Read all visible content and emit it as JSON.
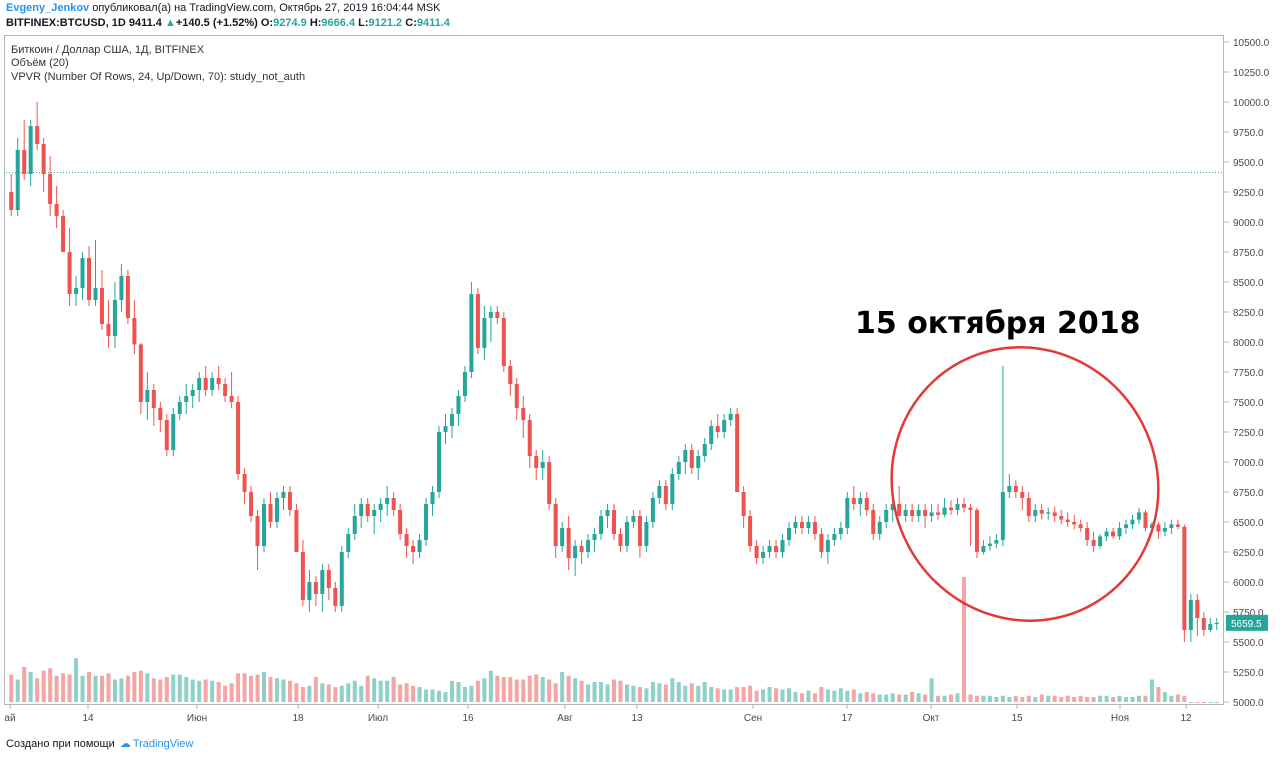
{
  "header": {
    "author": "Evgeny_Jenkov",
    "published_text": "опубликовал(а) на TradingView.com, Октябрь 27, 2019 16:04:44 MSK",
    "symbol": "BITFINEX:BTCUSD, 1D",
    "last": "9411.4",
    "change": "+140.5 (+1.52%)",
    "open_label": "O:",
    "open": "9274.9",
    "high_label": "H:",
    "high": "9666.4",
    "low_label": "L:",
    "low": "9121.2",
    "close_label": "C:",
    "close": "9411.4"
  },
  "legend": {
    "title": "Биткоин / Доллар США, 1Д, BITFINEX",
    "volume": "Объём (20)",
    "vpvr": "VPVR (Number Of Rows, 24, Up/Down, 70): study_not_auth"
  },
  "annotation": "15 октября 2018",
  "footer": {
    "created": "Создано при помощи",
    "brand": "TradingView"
  },
  "colors": {
    "up": "#26a69a",
    "down": "#ef5350",
    "vol_up": "#8fd1c8",
    "vol_down": "#f5a5a3",
    "circle": "#e53935",
    "price_line": "#26a69a"
  },
  "chart_data": {
    "type": "candlestick",
    "y_axis": {
      "min": 5000,
      "max": 10500,
      "step": 250,
      "tick_labels": [
        "10500.0",
        "10250.0",
        "10000.0",
        "9750.0",
        "9500.0",
        "9250.0",
        "9000.0",
        "8750.0",
        "8500.0",
        "8250.0",
        "8000.0",
        "7750.0",
        "7500.0",
        "7250.0",
        "7000.0",
        "6750.0",
        "6500.0",
        "6250.0",
        "6000.0",
        "5750.0",
        "5500.0",
        "5250.0",
        "5000.0"
      ]
    },
    "x_axis": {
      "labels": [
        "ай",
        "14",
        "Июн",
        "18",
        "Июл",
        "16",
        "Авг",
        "13",
        "Сен",
        "17",
        "Окт",
        "15",
        "Ноя",
        "12"
      ]
    },
    "current_price_label": "5659.5",
    "current_price": 5659.5,
    "price_line": 9411.4,
    "candles": [
      [
        9250,
        9400,
        9050,
        9100
      ],
      [
        9100,
        9700,
        9050,
        9600
      ],
      [
        9600,
        9850,
        9350,
        9400
      ],
      [
        9400,
        9850,
        9300,
        9800
      ],
      [
        9800,
        10000,
        9600,
        9650
      ],
      [
        9650,
        9700,
        9250,
        9400
      ],
      [
        9400,
        9550,
        9050,
        9150
      ],
      [
        9150,
        9300,
        8950,
        9050
      ],
      [
        9050,
        9100,
        8750,
        8750
      ],
      [
        8750,
        8950,
        8300,
        8400
      ],
      [
        8400,
        8550,
        8300,
        8450
      ],
      [
        8450,
        8750,
        8350,
        8700
      ],
      [
        8700,
        8800,
        8300,
        8350
      ],
      [
        8350,
        8850,
        8300,
        8450
      ],
      [
        8450,
        8600,
        8100,
        8150
      ],
      [
        8150,
        8350,
        7950,
        8050
      ],
      [
        8050,
        8500,
        7950,
        8350
      ],
      [
        8350,
        8650,
        8250,
        8550
      ],
      [
        8550,
        8600,
        8150,
        8200
      ],
      [
        8200,
        8350,
        7900,
        7980
      ],
      [
        7980,
        7990,
        7400,
        7500
      ],
      [
        7500,
        7750,
        7350,
        7600
      ],
      [
        7600,
        7650,
        7300,
        7450
      ],
      [
        7450,
        7500,
        7250,
        7350
      ],
      [
        7350,
        7400,
        7050,
        7100
      ],
      [
        7100,
        7450,
        7050,
        7400
      ],
      [
        7400,
        7550,
        7350,
        7500
      ],
      [
        7500,
        7650,
        7400,
        7550
      ],
      [
        7550,
        7650,
        7450,
        7600
      ],
      [
        7600,
        7750,
        7500,
        7700
      ],
      [
        7700,
        7800,
        7550,
        7600
      ],
      [
        7600,
        7750,
        7550,
        7700
      ],
      [
        7700,
        7800,
        7600,
        7650
      ],
      [
        7650,
        7700,
        7500,
        7550
      ],
      [
        7550,
        7750,
        7450,
        7500
      ],
      [
        7500,
        7550,
        6850,
        6900
      ],
      [
        6900,
        6950,
        6650,
        6750
      ],
      [
        6750,
        6800,
        6500,
        6550
      ],
      [
        6550,
        6600,
        6100,
        6300
      ],
      [
        6300,
        6700,
        6250,
        6650
      ],
      [
        6650,
        6750,
        6450,
        6500
      ],
      [
        6500,
        6750,
        6450,
        6700
      ],
      [
        6700,
        6800,
        6600,
        6750
      ],
      [
        6750,
        6800,
        6550,
        6600
      ],
      [
        6600,
        6650,
        6300,
        6250
      ],
      [
        6250,
        6350,
        5800,
        5850
      ],
      [
        5850,
        6100,
        5750,
        6000
      ],
      [
        6000,
        6050,
        5800,
        5900
      ],
      [
        5900,
        6150,
        5750,
        6100
      ],
      [
        6100,
        6150,
        5850,
        5950
      ],
      [
        5950,
        6000,
        5750,
        5800
      ],
      [
        5800,
        6300,
        5750,
        6250
      ],
      [
        6250,
        6450,
        6200,
        6400
      ],
      [
        6400,
        6650,
        6350,
        6550
      ],
      [
        6550,
        6700,
        6450,
        6650
      ],
      [
        6650,
        6700,
        6500,
        6550
      ],
      [
        6550,
        6650,
        6400,
        6600
      ],
      [
        6600,
        6700,
        6500,
        6650
      ],
      [
        6650,
        6800,
        6550,
        6700
      ],
      [
        6700,
        6750,
        6550,
        6600
      ],
      [
        6600,
        6650,
        6350,
        6400
      ],
      [
        6400,
        6450,
        6200,
        6300
      ],
      [
        6300,
        6350,
        6150,
        6250
      ],
      [
        6250,
        6400,
        6200,
        6350
      ],
      [
        6350,
        6700,
        6300,
        6650
      ],
      [
        6650,
        6800,
        6550,
        6750
      ],
      [
        6750,
        7300,
        6700,
        7250
      ],
      [
        7250,
        7400,
        7150,
        7300
      ],
      [
        7300,
        7450,
        7200,
        7400
      ],
      [
        7400,
        7600,
        7300,
        7550
      ],
      [
        7550,
        7800,
        7500,
        7750
      ],
      [
        7750,
        8500,
        7700,
        8400
      ],
      [
        8400,
        8450,
        7900,
        7950
      ],
      [
        7950,
        8300,
        7850,
        8200
      ],
      [
        8200,
        8300,
        8000,
        8250
      ],
      [
        8250,
        8300,
        8150,
        8200
      ],
      [
        8200,
        8250,
        7750,
        7800
      ],
      [
        7800,
        7850,
        7550,
        7650
      ],
      [
        7650,
        7700,
        7350,
        7450
      ],
      [
        7450,
        7550,
        7200,
        7350
      ],
      [
        7350,
        7400,
        6950,
        7050
      ],
      [
        7050,
        7100,
        6850,
        6950
      ],
      [
        6950,
        7100,
        6850,
        7000
      ],
      [
        7000,
        7050,
        6600,
        6650
      ],
      [
        6650,
        6700,
        6200,
        6300
      ],
      [
        6300,
        6500,
        6250,
        6450
      ],
      [
        6450,
        6550,
        6100,
        6200
      ],
      [
        6200,
        6350,
        6050,
        6300
      ],
      [
        6300,
        6350,
        6150,
        6250
      ],
      [
        6250,
        6400,
        6200,
        6350
      ],
      [
        6350,
        6450,
        6250,
        6400
      ],
      [
        6400,
        6600,
        6350,
        6550
      ],
      [
        6550,
        6650,
        6450,
        6600
      ],
      [
        6600,
        6650,
        6350,
        6400
      ],
      [
        6400,
        6450,
        6250,
        6300
      ],
      [
        6300,
        6550,
        6250,
        6500
      ],
      [
        6500,
        6600,
        6450,
        6550
      ],
      [
        6550,
        6600,
        6200,
        6300
      ],
      [
        6300,
        6550,
        6250,
        6500
      ],
      [
        6500,
        6750,
        6450,
        6700
      ],
      [
        6700,
        6850,
        6650,
        6800
      ],
      [
        6800,
        6850,
        6600,
        6650
      ],
      [
        6650,
        6950,
        6600,
        6900
      ],
      [
        6900,
        7050,
        6850,
        7000
      ],
      [
        7000,
        7150,
        6900,
        7100
      ],
      [
        7100,
        7150,
        6900,
        6950
      ],
      [
        6950,
        7100,
        6850,
        7050
      ],
      [
        7050,
        7200,
        7000,
        7150
      ],
      [
        7150,
        7350,
        7100,
        7300
      ],
      [
        7300,
        7400,
        7200,
        7250
      ],
      [
        7250,
        7400,
        7200,
        7350
      ],
      [
        7350,
        7450,
        7300,
        7400
      ],
      [
        7400,
        7450,
        6750,
        6750
      ],
      [
        6750,
        6800,
        6450,
        6550
      ],
      [
        6550,
        6600,
        6250,
        6300
      ],
      [
        6300,
        6350,
        6150,
        6200
      ],
      [
        6200,
        6300,
        6150,
        6250
      ],
      [
        6250,
        6350,
        6200,
        6300
      ],
      [
        6300,
        6350,
        6200,
        6250
      ],
      [
        6250,
        6400,
        6200,
        6350
      ],
      [
        6350,
        6500,
        6300,
        6450
      ],
      [
        6450,
        6550,
        6400,
        6500
      ],
      [
        6500,
        6550,
        6400,
        6450
      ],
      [
        6450,
        6550,
        6400,
        6500
      ],
      [
        6500,
        6550,
        6350,
        6400
      ],
      [
        6400,
        6450,
        6200,
        6250
      ],
      [
        6250,
        6400,
        6150,
        6350
      ],
      [
        6350,
        6450,
        6300,
        6400
      ],
      [
        6400,
        6500,
        6350,
        6450
      ],
      [
        6450,
        6750,
        6400,
        6700
      ],
      [
        6700,
        6800,
        6600,
        6650
      ],
      [
        6650,
        6750,
        6550,
        6700
      ],
      [
        6700,
        6750,
        6550,
        6600
      ],
      [
        6600,
        6650,
        6350,
        6400
      ],
      [
        6400,
        6550,
        6350,
        6500
      ],
      [
        6500,
        6650,
        6450,
        6600
      ],
      [
        6600,
        6700,
        6500,
        6650
      ],
      [
        6650,
        6800,
        6550,
        6550
      ],
      [
        6550,
        6650,
        6500,
        6600
      ],
      [
        6600,
        6650,
        6500,
        6550
      ],
      [
        6550,
        6650,
        6500,
        6600
      ],
      [
        6600,
        6650,
        6450,
        6550
      ],
      [
        6550,
        6650,
        6500,
        6580
      ],
      [
        6580,
        6650,
        6520,
        6560
      ],
      [
        6560,
        6700,
        6540,
        6620
      ],
      [
        6620,
        6680,
        6560,
        6600
      ],
      [
        6600,
        6700,
        6560,
        6650
      ],
      [
        6650,
        6700,
        6580,
        6620
      ],
      [
        6620,
        6650,
        6300,
        6600
      ],
      [
        6600,
        6620,
        6200,
        6250
      ],
      [
        6250,
        6350,
        6230,
        6300
      ],
      [
        6300,
        6380,
        6260,
        6320
      ],
      [
        6320,
        6400,
        6280,
        6350
      ],
      [
        6350,
        7800,
        6300,
        6750
      ],
      [
        6750,
        6900,
        6700,
        6800
      ],
      [
        6800,
        6850,
        6700,
        6750
      ],
      [
        6750,
        6800,
        6600,
        6700
      ],
      [
        6700,
        6750,
        6500,
        6550
      ],
      [
        6550,
        6650,
        6500,
        6600
      ],
      [
        6600,
        6650,
        6520,
        6570
      ],
      [
        6570,
        6620,
        6520,
        6580
      ],
      [
        6580,
        6630,
        6500,
        6550
      ],
      [
        6550,
        6600,
        6480,
        6520
      ],
      [
        6520,
        6580,
        6460,
        6500
      ],
      [
        6500,
        6560,
        6440,
        6480
      ],
      [
        6480,
        6520,
        6420,
        6450
      ],
      [
        6450,
        6500,
        6300,
        6350
      ],
      [
        6350,
        6420,
        6250,
        6300
      ],
      [
        6300,
        6400,
        6280,
        6380
      ],
      [
        6380,
        6450,
        6340,
        6420
      ],
      [
        6420,
        6450,
        6360,
        6380
      ],
      [
        6380,
        6500,
        6350,
        6450
      ],
      [
        6450,
        6520,
        6400,
        6480
      ],
      [
        6480,
        6560,
        6440,
        6520
      ],
      [
        6520,
        6620,
        6480,
        6580
      ],
      [
        6580,
        6600,
        6420,
        6450
      ],
      [
        6450,
        6500,
        6400,
        6480
      ],
      [
        6480,
        6500,
        6360,
        6420
      ],
      [
        6420,
        6500,
        6380,
        6450
      ],
      [
        6450,
        6520,
        6400,
        6480
      ],
      [
        6480,
        6520,
        6440,
        6460
      ],
      [
        6460,
        6480,
        5500,
        5600
      ],
      [
        5600,
        5900,
        5500,
        5850
      ],
      [
        5850,
        5900,
        5550,
        5700
      ],
      [
        5700,
        5750,
        5550,
        5600
      ],
      [
        5600,
        5700,
        5580,
        5650
      ],
      [
        5650,
        5700,
        5600,
        5659.5
      ]
    ],
    "volumes": [
      0.22,
      0.18,
      0.28,
      0.24,
      0.19,
      0.25,
      0.27,
      0.21,
      0.23,
      0.22,
      0.35,
      0.21,
      0.24,
      0.21,
      0.21,
      0.23,
      0.18,
      0.19,
      0.21,
      0.24,
      0.25,
      0.23,
      0.19,
      0.18,
      0.2,
      0.22,
      0.22,
      0.2,
      0.18,
      0.17,
      0.18,
      0.17,
      0.16,
      0.13,
      0.15,
      0.23,
      0.23,
      0.21,
      0.22,
      0.24,
      0.2,
      0.19,
      0.18,
      0.17,
      0.15,
      0.12,
      0.13,
      0.2,
      0.15,
      0.14,
      0.12,
      0.13,
      0.15,
      0.17,
      0.13,
      0.21,
      0.19,
      0.17,
      0.17,
      0.2,
      0.14,
      0.15,
      0.13,
      0.12,
      0.1,
      0.1,
      0.09,
      0.08,
      0.17,
      0.16,
      0.12,
      0.13,
      0.17,
      0.19,
      0.25,
      0.21,
      0.2,
      0.2,
      0.18,
      0.18,
      0.21,
      0.22,
      0.2,
      0.18,
      0.15,
      0.24,
      0.21,
      0.19,
      0.17,
      0.14,
      0.16,
      0.16,
      0.14,
      0.18,
      0.17,
      0.14,
      0.13,
      0.12,
      0.11,
      0.16,
      0.15,
      0.14,
      0.19,
      0.16,
      0.13,
      0.15,
      0.13,
      0.16,
      0.12,
      0.11,
      0.1,
      0.1,
      0.12,
      0.12,
      0.13,
      0.09,
      0.1,
      0.12,
      0.11,
      0.1,
      0.11,
      0.08,
      0.07,
      0.09,
      0.07,
      0.12,
      0.1,
      0.09,
      0.11,
      0.09,
      0.1,
      0.07,
      0.08,
      0.07,
      0.06,
      0.06,
      0.07,
      0.06,
      0.06,
      0.08,
      0.07,
      0.06,
      0.19,
      0.05,
      0.05,
      0.06,
      0.07,
      1.0,
      0.06,
      0.05,
      0.05,
      0.05,
      0.04,
      0.05,
      0.04,
      0.05,
      0.04,
      0.05,
      0.04,
      0.06,
      0.05,
      0.05,
      0.04,
      0.05,
      0.04,
      0.05,
      0.04,
      0.04,
      0.05,
      0.05,
      0.04,
      0.05,
      0.04,
      0.04,
      0.05,
      0.05,
      0.18,
      0.12,
      0.08,
      0.05,
      0.06,
      0.05
    ]
  }
}
